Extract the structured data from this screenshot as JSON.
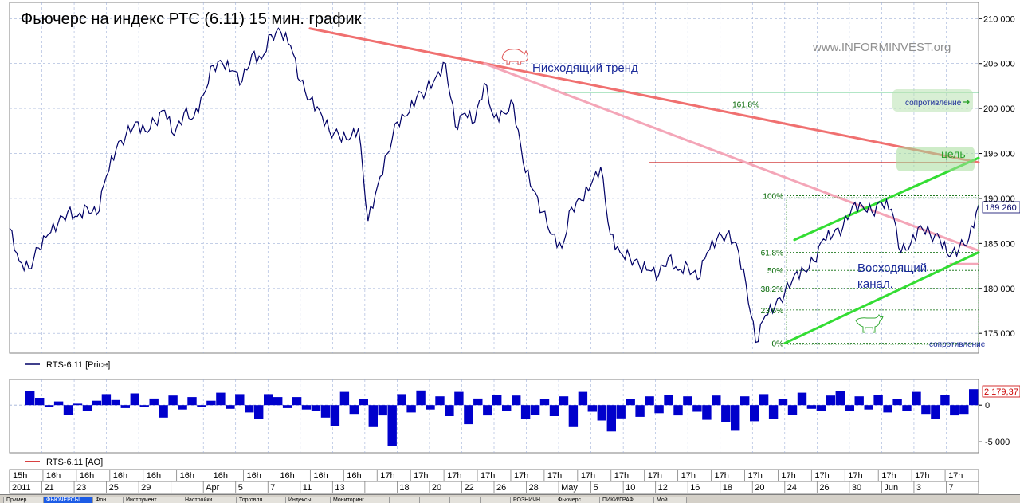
{
  "chart_data": [
    {
      "type": "line",
      "title": "Фьючерс на индекс  РТС  (6.11) 15 мин. график",
      "watermark": "www.INFORMINVEST.org",
      "legend": "RTS-6.11 [Price]",
      "last_price_label": "189 260",
      "y_ticks": [
        "210 000",
        "205 000",
        "200 000",
        "195 000",
        "190 000",
        "185 000",
        "180 000",
        "175 000"
      ],
      "ylim": [
        172800,
        211800
      ],
      "x_index_range": [
        0,
        100
      ],
      "series": [
        {
          "points": [
            [
              0,
              186700
            ],
            [
              1,
              183000
            ],
            [
              2,
              182200
            ],
            [
              3,
              184500
            ],
            [
              4,
              186000
            ],
            [
              5,
              187200
            ],
            [
              6,
              188500
            ],
            [
              7,
              188000
            ],
            [
              8,
              189000
            ],
            [
              9,
              188200
            ],
            [
              10,
              192500
            ],
            [
              11,
              195500
            ],
            [
              12,
              197000
            ],
            [
              13,
              198500
            ],
            [
              14,
              197500
            ],
            [
              15,
              198500
            ],
            [
              16,
              199800
            ],
            [
              17,
              197000
            ],
            [
              18,
              199500
            ],
            [
              19,
              199000
            ],
            [
              20,
              201500
            ],
            [
              21,
              204800
            ],
            [
              22,
              205000
            ],
            [
              23,
              204200
            ],
            [
              24,
              203000
            ],
            [
              25,
              206000
            ],
            [
              26,
              205500
            ],
            [
              27,
              208200
            ],
            [
              28,
              208500
            ],
            [
              29,
              207000
            ],
            [
              30,
              203000
            ],
            [
              31,
              201000
            ],
            [
              32,
              199800
            ],
            [
              33,
              197500
            ],
            [
              34,
              197000
            ],
            [
              35,
              196500
            ],
            [
              36,
              197800
            ],
            [
              37,
              187500
            ],
            [
              38,
              191500
            ],
            [
              39,
              195000
            ],
            [
              40,
              198500
            ],
            [
              41,
              199200
            ],
            [
              42,
              201200
            ],
            [
              43,
              202000
            ],
            [
              44,
              203500
            ],
            [
              45,
              205000
            ],
            [
              46,
              198000
            ],
            [
              47,
              199500
            ],
            [
              48,
              198500
            ],
            [
              49,
              202800
            ],
            [
              50,
              199000
            ],
            [
              51,
              199500
            ],
            [
              52,
              200500
            ],
            [
              53,
              194000
            ],
            [
              54,
              191000
            ],
            [
              55,
              188500
            ],
            [
              56,
              186000
            ],
            [
              57,
              184500
            ],
            [
              58,
              189000
            ],
            [
              59,
              189800
            ],
            [
              60,
              191500
            ],
            [
              61,
              193500
            ],
            [
              62,
              186000
            ],
            [
              63,
              184000
            ],
            [
              64,
              183500
            ],
            [
              65,
              182500
            ],
            [
              66,
              182000
            ],
            [
              67,
              181500
            ],
            [
              68,
              183500
            ],
            [
              69,
              182000
            ],
            [
              70,
              182500
            ],
            [
              71,
              181000
            ],
            [
              72,
              184000
            ],
            [
              73,
              185500
            ],
            [
              74,
              186000
            ],
            [
              75,
              185000
            ],
            [
              76,
              180500
            ],
            [
              77,
              174000
            ],
            [
              78,
              177000
            ],
            [
              79,
              178000
            ],
            [
              80,
              179500
            ],
            [
              81,
              181500
            ],
            [
              82,
              182000
            ],
            [
              83,
              183000
            ],
            [
              84,
              185500
            ],
            [
              85,
              186000
            ],
            [
              86,
              186800
            ],
            [
              87,
              189200
            ],
            [
              88,
              189200
            ],
            [
              89,
              188500
            ],
            [
              90,
              189500
            ],
            [
              91,
              188800
            ],
            [
              92,
              184000
            ],
            [
              93,
              185000
            ],
            [
              94,
              187000
            ],
            [
              95,
              186000
            ],
            [
              96,
              185500
            ],
            [
              97,
              183500
            ],
            [
              98,
              184500
            ],
            [
              99,
              185500
            ],
            [
              100,
              189260
            ]
          ]
        }
      ],
      "fib_levels": [
        {
          "label": "0%",
          "value": 173900
        },
        {
          "label": "23.6%",
          "value": 177600
        },
        {
          "label": "38.2%",
          "value": 180000
        },
        {
          "label": "50%",
          "value": 182000
        },
        {
          "label": "61.8%",
          "value": 184000
        },
        {
          "label": "100%",
          "value": 190300
        },
        {
          "label": "161.8%",
          "value": 200500
        }
      ],
      "annotations": {
        "downtrend": "Нисходящий тренд",
        "channel_1": "Восходящий",
        "channel_2": "канал.",
        "target": "цель",
        "resistance_top": "сопротивление",
        "resistance_bottom": "сопротивление"
      },
      "trend_lines": [
        {
          "from": [
            31,
            208900
          ],
          "to": [
            100,
            194000
          ],
          "color": "#f07070"
        },
        {
          "from": [
            49,
            205000
          ],
          "to": [
            100,
            184200
          ],
          "color": "#f4a6b8"
        },
        {
          "from": [
            80,
            173900
          ],
          "to": [
            100,
            184000
          ],
          "color": "#33dd33"
        },
        {
          "from": [
            81,
            185400
          ],
          "to": [
            100,
            194500
          ],
          "color": "#33dd33"
        }
      ],
      "horizontal_lines": [
        {
          "value": 201800,
          "from": 57,
          "to": 100,
          "color": "#33bb66"
        },
        {
          "value": 194000,
          "from": 66,
          "to": 100,
          "color": "#cc2222"
        },
        {
          "value": 182700,
          "from": 97,
          "to": 100,
          "color": "#f4a6b8"
        }
      ],
      "colors": {
        "price": "#000066",
        "fib": "#006600",
        "grid": "#9fb0d8"
      }
    },
    {
      "type": "bar",
      "legend": "RTS-6.11 [AO]",
      "last_value_label": "2 179,37",
      "y_ticks": [
        "0",
        "-5 000"
      ],
      "ylim": [
        -6500,
        3500
      ],
      "values": [
        1900,
        1000,
        -300,
        500,
        -1300,
        200,
        -800,
        600,
        1500,
        700,
        -400,
        1600,
        -300,
        900,
        -1700,
        1300,
        -600,
        1100,
        -300,
        600,
        1700,
        -500,
        1500,
        -1000,
        -1900,
        1500,
        1100,
        -400,
        1100,
        -600,
        -800,
        -1700,
        -2800,
        1800,
        -1200,
        800,
        -3000,
        -1400,
        -5600,
        1500,
        -1000,
        2000,
        -600,
        1200,
        -1500,
        1800,
        -2600,
        900,
        -1400,
        1400,
        -800,
        1300,
        -1900,
        -1300,
        800,
        -1500,
        1200,
        -3000,
        1800,
        -900,
        -2100,
        -3600,
        -1800,
        800,
        -1600,
        1200,
        -1100,
        1400,
        -1400,
        1200,
        -900,
        -2000,
        1300,
        -2300,
        -3500,
        1200,
        -2200,
        1500,
        -1900,
        800,
        -1300,
        1700,
        -500,
        -800,
        1300,
        1900,
        -800,
        1200,
        -600,
        1400,
        -1000,
        800,
        -800,
        1800,
        -1200,
        -1900,
        1400,
        -1400,
        -1200,
        2179
      ],
      "colors": {
        "bar": "#0000cc"
      }
    }
  ],
  "time_axis": {
    "top_labels": [
      "15h",
      "16h",
      "16h",
      "16h",
      "16h",
      "16h",
      "16h",
      "16h",
      "16h",
      "16h",
      "16h",
      "17h",
      "17h",
      "17h",
      "17h",
      "17h",
      "17h",
      "17h",
      "17h",
      "17h",
      "17h",
      "17h",
      "17h",
      "17h",
      "17h",
      "17h",
      "17h",
      "17h",
      "17h"
    ],
    "bottom_labels": [
      "2011",
      "21",
      "23",
      "25",
      "29",
      "",
      "Apr",
      "5",
      "7",
      "11",
      "13",
      "",
      "18",
      "20",
      "22",
      "26",
      "28",
      "May",
      "5",
      "10",
      "12",
      "16",
      "18",
      "20",
      "24",
      "26",
      "30",
      "Jun",
      "3",
      "7"
    ]
  },
  "tabs": [
    "Пример",
    "ФЬЮЧЕРСЫ",
    "Фон",
    "Инструмент",
    "Настройки",
    "Торговля",
    "Индексы",
    "Мониторинг",
    "",
    "",
    "",
    "",
    "РОЗНИЧН",
    "Фьючерс",
    "ПИКИ/ГРАФ",
    "Мой"
  ]
}
